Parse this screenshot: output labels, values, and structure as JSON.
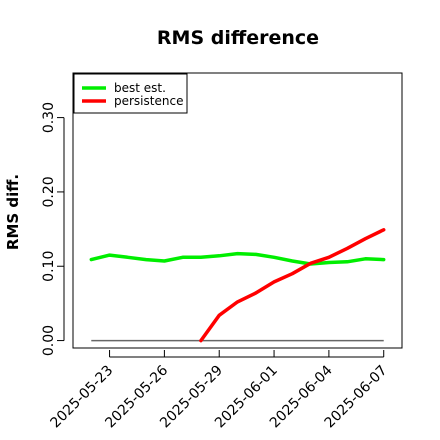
{
  "chart_data": {
    "type": "line",
    "title": "RMS difference",
    "xlabel": "",
    "ylabel": "RMS diff.",
    "ylim": [
      -0.01,
      0.36
    ],
    "yticks": [
      0.0,
      0.1,
      0.2,
      0.3
    ],
    "ytick_labels": [
      "0.00",
      "0.10",
      "0.20",
      "0.30"
    ],
    "xlim": [
      "2025-05-21",
      "2025-06-08"
    ],
    "xticks": [
      "2025-05-23",
      "2025-05-26",
      "2025-05-29",
      "2025-06-01",
      "2025-06-04",
      "2025-06-07"
    ],
    "grid": false,
    "legend_position": "top-left",
    "series": [
      {
        "name": "best est.",
        "color": "#00ee00",
        "x": [
          "2025-05-22",
          "2025-05-23",
          "2025-05-24",
          "2025-05-25",
          "2025-05-26",
          "2025-05-27",
          "2025-05-28",
          "2025-05-29",
          "2025-05-30",
          "2025-05-31",
          "2025-06-01",
          "2025-06-02",
          "2025-06-03",
          "2025-06-04",
          "2025-06-05",
          "2025-06-06",
          "2025-06-07"
        ],
        "y": [
          0.109,
          0.115,
          0.112,
          0.109,
          0.107,
          0.112,
          0.112,
          0.114,
          0.117,
          0.116,
          0.112,
          0.107,
          0.103,
          0.105,
          0.106,
          0.11,
          0.109
        ]
      },
      {
        "name": "persistence",
        "color": "#ff0000",
        "x": [
          "2025-05-28",
          "2025-05-29",
          "2025-05-30",
          "2025-05-31",
          "2025-06-01",
          "2025-06-02",
          "2025-06-03",
          "2025-06-04",
          "2025-06-05",
          "2025-06-06",
          "2025-06-07"
        ],
        "y": [
          0.0,
          0.034,
          0.052,
          0.064,
          0.079,
          0.09,
          0.104,
          0.112,
          0.124,
          0.137,
          0.149
        ]
      }
    ],
    "reference_line": {
      "y": 0.0,
      "color": "#666666",
      "x_start": "2025-05-22",
      "x_end": "2025-06-07"
    }
  }
}
